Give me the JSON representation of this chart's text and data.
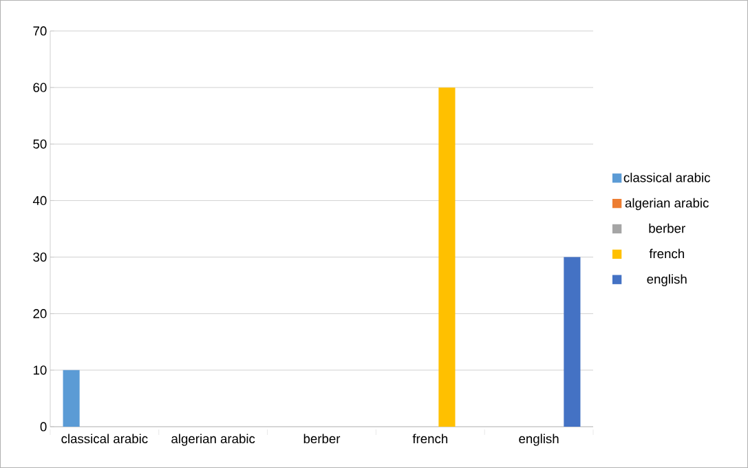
{
  "chart_data": {
    "type": "bar",
    "categories": [
      "classical arabic",
      "algerian arabic",
      "berber",
      "french",
      "english"
    ],
    "series": [
      {
        "name": "classical arabic",
        "color": "#5b9bd5",
        "values": [
          10,
          null,
          null,
          null,
          null
        ]
      },
      {
        "name": "algerian arabic",
        "color": "#ed7d31",
        "values": [
          null,
          0,
          null,
          null,
          null
        ]
      },
      {
        "name": "berber",
        "color": "#a5a5a5",
        "values": [
          null,
          null,
          0,
          null,
          null
        ]
      },
      {
        "name": "french",
        "color": "#ffc000",
        "values": [
          null,
          null,
          null,
          60,
          null
        ]
      },
      {
        "name": "english",
        "color": "#4472c4",
        "values": [
          null,
          null,
          null,
          null,
          30
        ]
      }
    ],
    "ylim": [
      0,
      70
    ],
    "yticks": [
      0,
      10,
      20,
      30,
      40,
      50,
      60,
      70
    ],
    "grid": "y",
    "legend": "right"
  }
}
